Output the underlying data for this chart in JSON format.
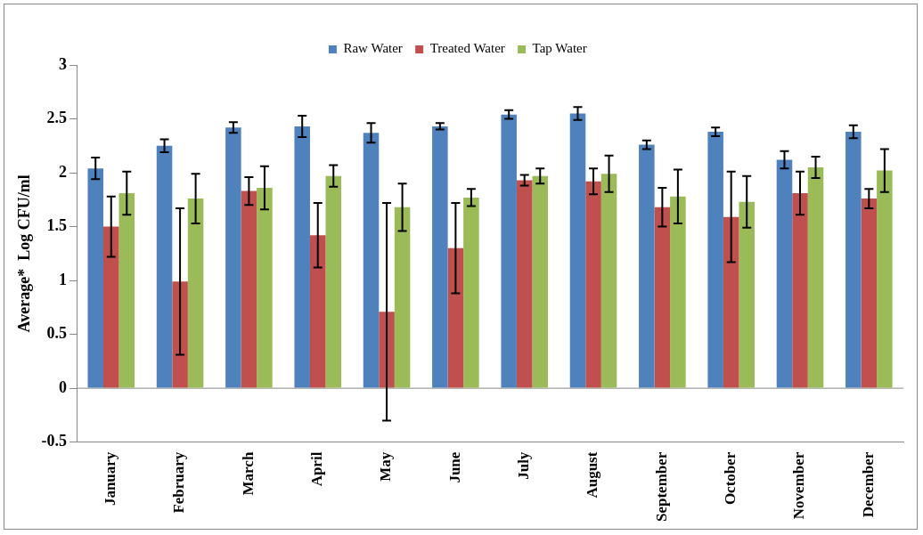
{
  "chart_data": {
    "type": "bar",
    "ylabel": "Average*  Log CFU/ml",
    "categories": [
      "January",
      "February",
      "March",
      "April",
      "May",
      "June",
      "July",
      "August",
      "September",
      "October",
      "November",
      "December"
    ],
    "series": [
      {
        "name": "Raw Water",
        "color": "#4f81bd",
        "values": [
          2.04,
          2.25,
          2.42,
          2.43,
          2.37,
          2.43,
          2.54,
          2.55,
          2.26,
          2.38,
          2.12,
          2.38
        ],
        "errors": [
          0.1,
          0.06,
          0.05,
          0.1,
          0.09,
          0.03,
          0.04,
          0.06,
          0.04,
          0.04,
          0.08,
          0.06
        ]
      },
      {
        "name": "Treated Water",
        "color": "#c0504d",
        "values": [
          1.5,
          0.99,
          1.83,
          1.42,
          0.71,
          1.3,
          1.93,
          1.92,
          1.68,
          1.59,
          1.81,
          1.76
        ],
        "errors": [
          0.28,
          0.68,
          0.13,
          0.3,
          1.01,
          0.42,
          0.05,
          0.12,
          0.18,
          0.42,
          0.2,
          0.09
        ]
      },
      {
        "name": "Tap Water",
        "color": "#9bbb59",
        "values": [
          1.81,
          1.76,
          1.86,
          1.97,
          1.68,
          1.77,
          1.97,
          1.99,
          1.78,
          1.73,
          2.05,
          2.02
        ],
        "errors": [
          0.2,
          0.23,
          0.2,
          0.1,
          0.22,
          0.08,
          0.07,
          0.17,
          0.25,
          0.24,
          0.1,
          0.2
        ]
      }
    ],
    "ylim": [
      -0.5,
      3
    ],
    "yticks": [
      -0.5,
      0,
      0.5,
      1,
      1.5,
      2,
      2.5,
      3
    ],
    "grid": false,
    "legend": "top",
    "ref_lines": [
      {
        "axis": "y",
        "value": 0,
        "color": "#888888"
      }
    ]
  }
}
